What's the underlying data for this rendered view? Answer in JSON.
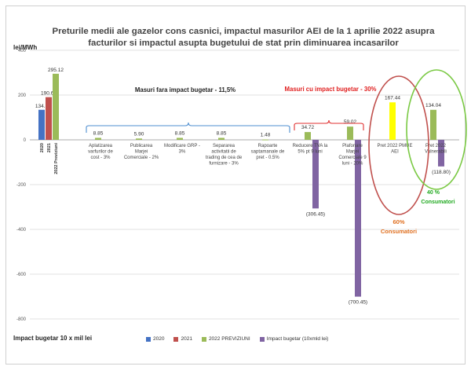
{
  "chart_data": {
    "type": "bar",
    "title_line1": "Preturile medii ale gazelor cons casnici, impactul masurilor AEI de la 1 aprilie 2022 asupra",
    "title_line2": "facturilor si impactul asupta bugetului de stat prin diminuarea incasarilor",
    "ylabel": "lei/MWh",
    "footer_label": "Impact bugetar 10 x mil lei",
    "ylim": [
      -800,
      400
    ],
    "yticks": [
      -800,
      -600,
      -400,
      -200,
      0,
      200,
      400
    ],
    "colors": {
      "2020": "#4472c4",
      "2021": "#c0504d",
      "2022": "#9bbb59",
      "impact": "#8064a2"
    },
    "legend": [
      {
        "key": "2020",
        "label": "2020"
      },
      {
        "key": "2021",
        "label": "2021"
      },
      {
        "key": "2022",
        "label": "2022 PREVIZIUNI"
      },
      {
        "key": "impact",
        "label": "Impact bugetar (10xmld lei)"
      }
    ],
    "first_group": {
      "bars": [
        {
          "key": "2020",
          "value": 134.1,
          "label": "134.1",
          "xlabel": "2020"
        },
        {
          "key": "2021",
          "value": 190.62,
          "label": "190.62",
          "xlabel": "2021"
        },
        {
          "key": "2022",
          "value": 295.12,
          "label": "295.12",
          "xlabel": "2022 Previziuni"
        }
      ]
    },
    "categories": [
      {
        "label": [
          "Aplatizarea",
          "varfurilor de",
          "cost - 3%"
        ],
        "y2022": 8.85,
        "y2022_label": "8.85",
        "impact": null,
        "impact_label": ""
      },
      {
        "label": [
          "Publicarea",
          "Marjei",
          "Comerciale - 2%"
        ],
        "y2022": 5.9,
        "y2022_label": "5.90",
        "impact": null,
        "impact_label": ""
      },
      {
        "label": [
          "Modificare GRP -",
          "3%"
        ],
        "y2022": 8.85,
        "y2022_label": "8.85",
        "impact": null,
        "impact_label": ""
      },
      {
        "label": [
          "Separarea",
          "activitatii de",
          "trading de cea de",
          "furnizare - 3%"
        ],
        "y2022": 8.85,
        "y2022_label": "8.85",
        "impact": null,
        "impact_label": ""
      },
      {
        "label": [
          "Rapoarte",
          "saptamanale de",
          "pret - 0.5%"
        ],
        "y2022": 1.48,
        "y2022_label": "1.48",
        "impact": null,
        "impact_label": ""
      },
      {
        "label": [
          "Reducere TVA la",
          "5% pt 9 luni"
        ],
        "y2022": 34.72,
        "y2022_label": "34.72",
        "impact": -306.45,
        "impact_label": "(306.45)"
      },
      {
        "label": [
          "Plafonare",
          "Marjei",
          "Comerciale 9",
          "luni - 20%"
        ],
        "y2022": 59.02,
        "y2022_label": "59.02",
        "impact": -700.45,
        "impact_label": "(700.45)"
      },
      {
        "label": [
          "Pret 2022 PMUE",
          "AEI"
        ],
        "y2022": 167.44,
        "y2022_label": "167.44",
        "impact": null,
        "impact_label": "",
        "yellow": true
      },
      {
        "label": [
          "Pret 2022",
          "Vulnerabili"
        ],
        "y2022": 134.04,
        "y2022_label": "134.04",
        "impact": -118.8,
        "impact_label": "(118.80)"
      }
    ],
    "annotations": {
      "no_budget": "Masuri fara impact bugetar - 11,5%",
      "with_budget": "Masuri cu impact bugetar - 30%",
      "consumers_pct": "60%",
      "consumers_label": "Consumatori",
      "vuln_pct": "40 %",
      "vuln_label": "Consumatori"
    }
  }
}
